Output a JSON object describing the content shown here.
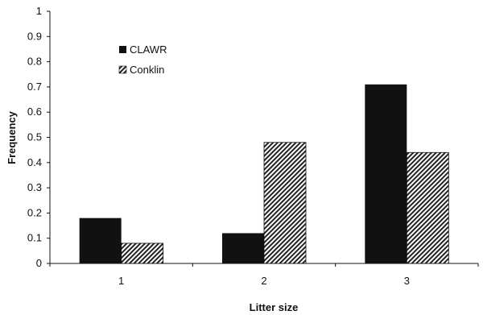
{
  "chart_data": {
    "type": "bar",
    "categories": [
      "1",
      "2",
      "3"
    ],
    "series": [
      {
        "name": "CLAWR",
        "values": [
          0.18,
          0.12,
          0.71
        ],
        "style": "solid",
        "color": "#111111"
      },
      {
        "name": "Conklin",
        "values": [
          0.08,
          0.48,
          0.44
        ],
        "style": "hatched",
        "color": "#111111"
      }
    ],
    "xlabel": "Litter size",
    "ylabel": "Frequency",
    "ylim": [
      0,
      1
    ],
    "yticks": [
      "0",
      "0.1",
      "0.2",
      "0.3",
      "0.4",
      "0.5",
      "0.6",
      "0.7",
      "0.8",
      "0.9",
      "1"
    ],
    "grid": false,
    "legend_position": "top-left"
  }
}
